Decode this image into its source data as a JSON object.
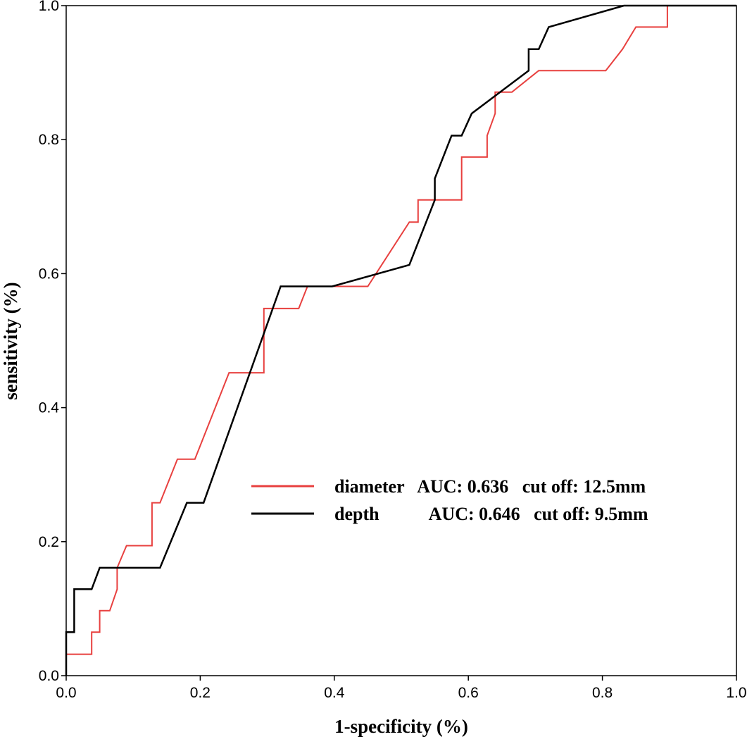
{
  "chart_data": {
    "type": "line",
    "title": "",
    "xlabel": "1-specificity (%)",
    "ylabel": "sensitivity (%)",
    "xlim": [
      0,
      1
    ],
    "ylim": [
      0,
      1
    ],
    "x_ticks": [
      "0.0",
      "0.2",
      "0.4",
      "0.6",
      "0.8",
      "1.0"
    ],
    "y_ticks": [
      "0.0",
      "0.2",
      "0.4",
      "0.6",
      "0.8",
      "1.0"
    ],
    "grid": false,
    "legend_position": "center-right",
    "series": [
      {
        "name": "diameter",
        "legend_text": "diameter   AUC: 0.636   cut off: 12.5mm",
        "color": "#e8403f",
        "points": [
          [
            0,
            0
          ],
          [
            0,
            0.032
          ],
          [
            0.038,
            0.032
          ],
          [
            0.038,
            0.065
          ],
          [
            0.05,
            0.065
          ],
          [
            0.05,
            0.097
          ],
          [
            0.065,
            0.097
          ],
          [
            0.076,
            0.129
          ],
          [
            0.076,
            0.161
          ],
          [
            0.09,
            0.194
          ],
          [
            0.128,
            0.194
          ],
          [
            0.128,
            0.258
          ],
          [
            0.14,
            0.258
          ],
          [
            0.166,
            0.323
          ],
          [
            0.192,
            0.323
          ],
          [
            0.243,
            0.452
          ],
          [
            0.295,
            0.452
          ],
          [
            0.295,
            0.548
          ],
          [
            0.347,
            0.548
          ],
          [
            0.36,
            0.581
          ],
          [
            0.45,
            0.581
          ],
          [
            0.512,
            0.677
          ],
          [
            0.525,
            0.677
          ],
          [
            0.525,
            0.71
          ],
          [
            0.59,
            0.71
          ],
          [
            0.59,
            0.774
          ],
          [
            0.628,
            0.774
          ],
          [
            0.628,
            0.806
          ],
          [
            0.64,
            0.839
          ],
          [
            0.64,
            0.871
          ],
          [
            0.665,
            0.871
          ],
          [
            0.705,
            0.903
          ],
          [
            0.805,
            0.903
          ],
          [
            0.83,
            0.935
          ],
          [
            0.85,
            0.968
          ],
          [
            0.897,
            0.968
          ],
          [
            0.897,
            1.0
          ],
          [
            1.0,
            1.0
          ]
        ]
      },
      {
        "name": "depth",
        "legend_text": "depth           AUC: 0.646   cut off: 9.5mm",
        "color": "#000000",
        "points": [
          [
            0,
            0
          ],
          [
            0,
            0.065
          ],
          [
            0.012,
            0.065
          ],
          [
            0.012,
            0.129
          ],
          [
            0.038,
            0.129
          ],
          [
            0.05,
            0.161
          ],
          [
            0.14,
            0.161
          ],
          [
            0.18,
            0.258
          ],
          [
            0.205,
            0.258
          ],
          [
            0.32,
            0.581
          ],
          [
            0.397,
            0.581
          ],
          [
            0.512,
            0.613
          ],
          [
            0.55,
            0.71
          ],
          [
            0.55,
            0.742
          ],
          [
            0.575,
            0.806
          ],
          [
            0.59,
            0.806
          ],
          [
            0.605,
            0.839
          ],
          [
            0.69,
            0.903
          ],
          [
            0.69,
            0.935
          ],
          [
            0.705,
            0.935
          ],
          [
            0.72,
            0.968
          ],
          [
            0.832,
            1.0
          ],
          [
            1.0,
            1.0
          ]
        ]
      }
    ]
  }
}
